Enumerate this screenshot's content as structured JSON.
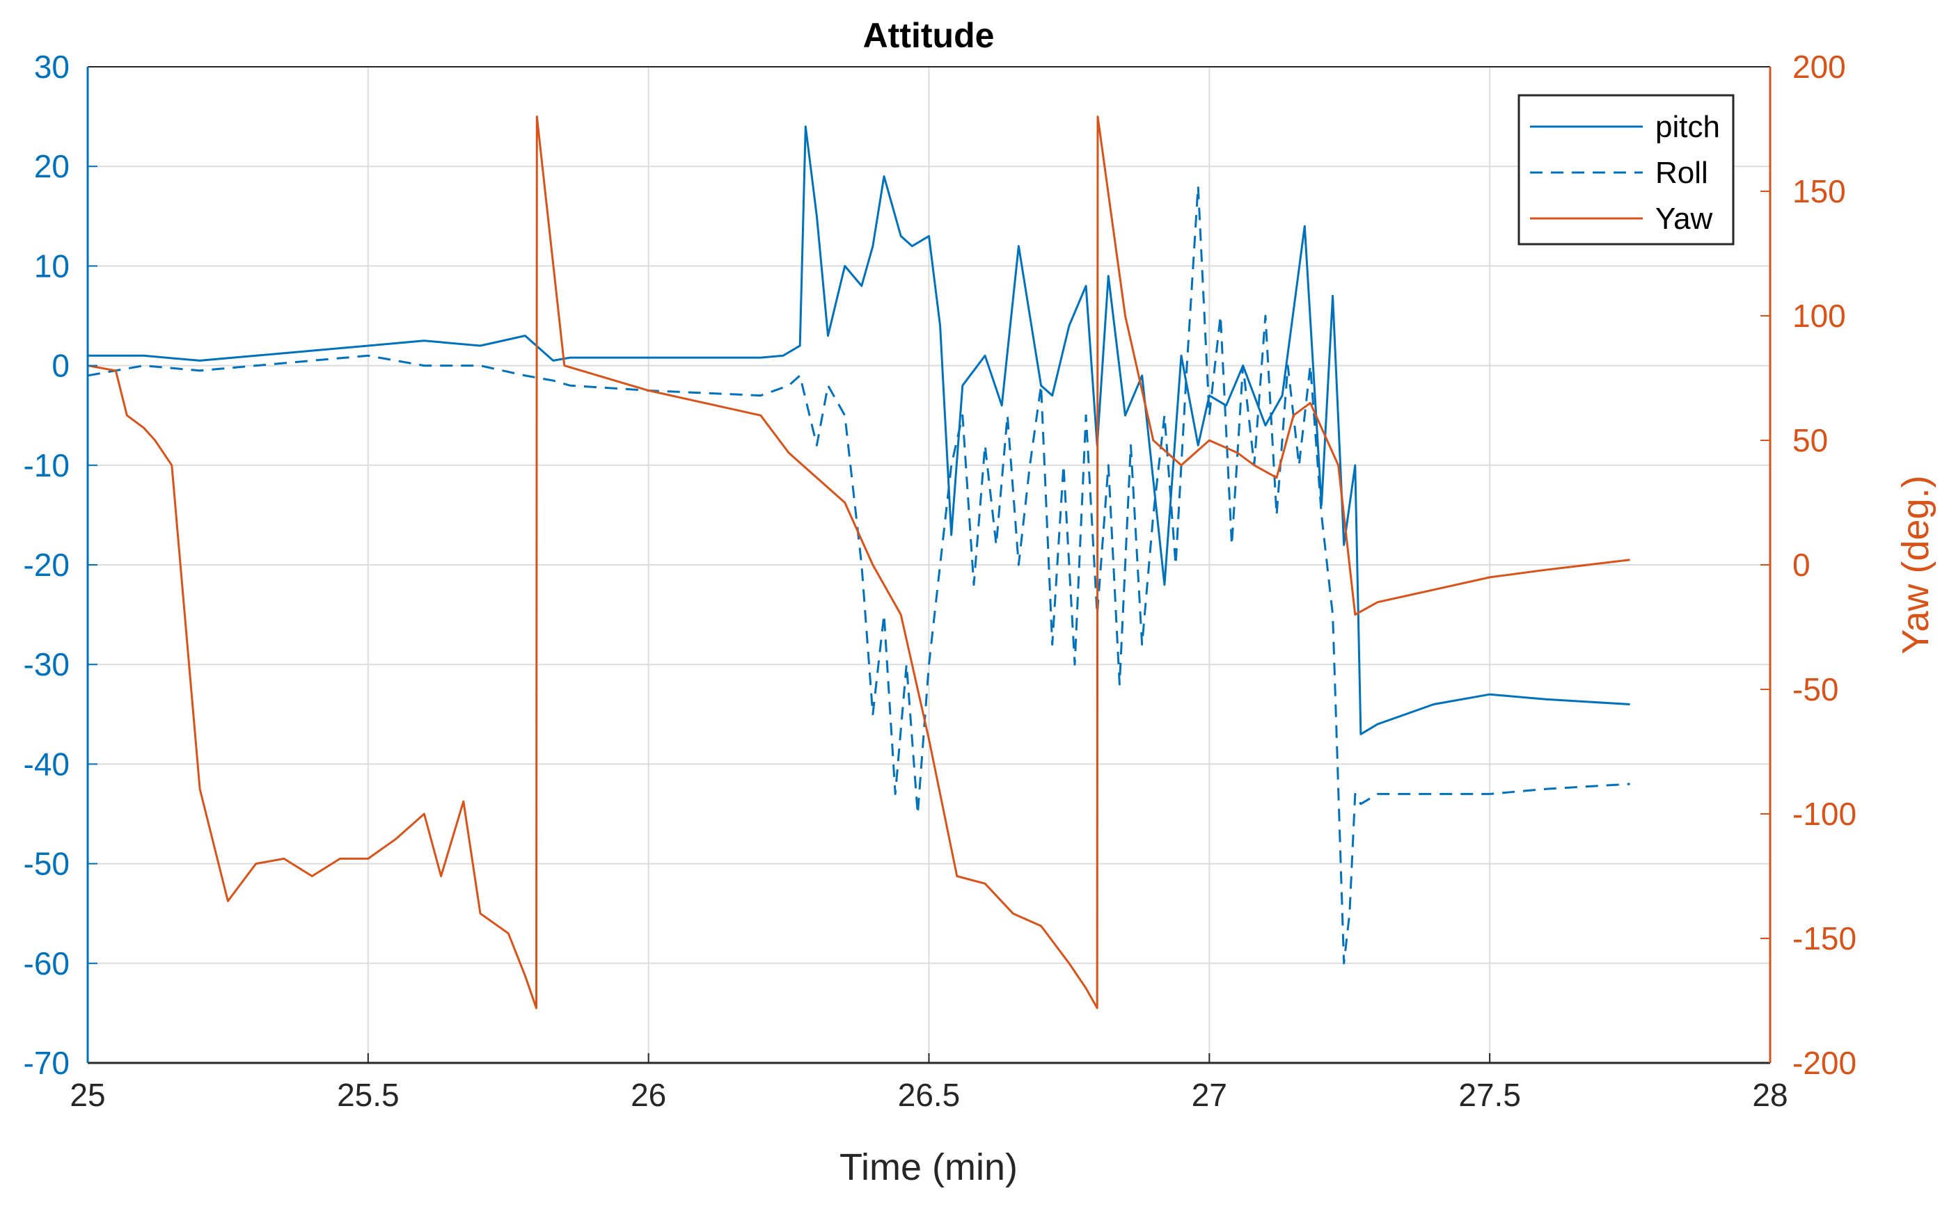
{
  "chart_data": {
    "type": "line",
    "title": "Attitude",
    "xlabel": "Time (min)",
    "ylabel_left": "",
    "ylabel_right": "Yaw (deg.)",
    "xlim": [
      25,
      28
    ],
    "ylim_left": [
      -70,
      30
    ],
    "ylim_right": [
      -200,
      200
    ],
    "xticks": [
      "25",
      "25.5",
      "26",
      "26.5",
      "27",
      "27.5",
      "28"
    ],
    "yticks_left": [
      "30",
      "20",
      "10",
      "0",
      "-10",
      "-20",
      "-30",
      "-40",
      "-50",
      "-60",
      "-70"
    ],
    "yticks_right": [
      "200",
      "150",
      "100",
      "50",
      "0",
      "-50",
      "-100",
      "-150",
      "-200"
    ],
    "grid": true,
    "legend_position": "top-right",
    "colors": {
      "left_axis": "#0072BD",
      "right_axis": "#D95319",
      "grid": "#dcdcdc",
      "axes": "#262626"
    },
    "series": [
      {
        "name": "pitch",
        "axis": "left",
        "style": "solid",
        "color": "#0072BD",
        "x": [
          25.0,
          25.1,
          25.2,
          25.3,
          25.4,
          25.5,
          25.6,
          25.7,
          25.78,
          25.83,
          25.86,
          26.0,
          26.2,
          26.24,
          26.27,
          26.28,
          26.3,
          26.32,
          26.35,
          26.38,
          26.4,
          26.42,
          26.45,
          26.47,
          26.5,
          26.52,
          26.54,
          26.56,
          26.6,
          26.63,
          26.66,
          26.7,
          26.72,
          26.75,
          26.78,
          26.8,
          26.82,
          26.85,
          26.88,
          26.92,
          26.95,
          26.98,
          27.0,
          27.03,
          27.06,
          27.1,
          27.13,
          27.17,
          27.2,
          27.22,
          27.24,
          27.26,
          27.27,
          27.3,
          27.4,
          27.5,
          27.6,
          27.75
        ],
        "values": [
          1,
          1,
          0.5,
          1,
          1.5,
          2,
          2.5,
          2,
          3,
          0.5,
          0.8,
          0.8,
          0.8,
          1,
          2,
          24,
          15,
          3,
          10,
          8,
          12,
          19,
          13,
          12,
          13,
          4,
          -17,
          -2,
          1,
          -4,
          12,
          -2,
          -3,
          4,
          8,
          -8,
          9,
          -5,
          -1,
          -22,
          1,
          -8,
          -3,
          -4,
          0,
          -6,
          -3,
          14,
          -14,
          7,
          -18,
          -10,
          -37,
          -36,
          -34,
          -33,
          -33.5,
          -34
        ]
      },
      {
        "name": "Roll",
        "axis": "left",
        "style": "dashed",
        "color": "#0072BD",
        "x": [
          25.0,
          25.1,
          25.2,
          25.3,
          25.4,
          25.5,
          25.6,
          25.7,
          25.78,
          25.83,
          25.86,
          26.0,
          26.2,
          26.25,
          26.27,
          26.3,
          26.32,
          26.35,
          26.38,
          26.4,
          26.42,
          26.44,
          26.46,
          26.48,
          26.5,
          26.52,
          26.54,
          26.56,
          26.58,
          26.6,
          26.62,
          26.64,
          26.66,
          26.68,
          26.7,
          26.72,
          26.74,
          26.76,
          26.78,
          26.8,
          26.82,
          26.84,
          26.86,
          26.88,
          26.9,
          26.92,
          26.94,
          26.96,
          26.98,
          27.0,
          27.02,
          27.04,
          27.06,
          27.08,
          27.1,
          27.12,
          27.14,
          27.16,
          27.18,
          27.2,
          27.22,
          27.24,
          27.25,
          27.26,
          27.27,
          27.3,
          27.4,
          27.5,
          27.6,
          27.75
        ],
        "values": [
          -1,
          0,
          -0.5,
          0,
          0.5,
          1,
          0,
          0,
          -1,
          -1.5,
          -2,
          -2.5,
          -3,
          -2,
          -1,
          -8,
          -2,
          -5,
          -20,
          -35,
          -25,
          -43,
          -30,
          -45,
          -30,
          -20,
          -10,
          -5,
          -22,
          -8,
          -18,
          -5,
          -20,
          -10,
          -2,
          -28,
          -10,
          -30,
          -5,
          -25,
          -10,
          -32,
          -8,
          -28,
          -15,
          -5,
          -20,
          0,
          18,
          -5,
          5,
          -18,
          0,
          -10,
          5,
          -15,
          0,
          -10,
          0,
          -15,
          -25,
          -60,
          -55,
          -43,
          -44,
          -43,
          -43,
          -43,
          -42.5,
          -42
        ]
      },
      {
        "name": "Yaw",
        "axis": "right",
        "style": "solid",
        "color": "#D95319",
        "x": [
          25.0,
          25.05,
          25.07,
          25.1,
          25.12,
          25.15,
          25.2,
          25.25,
          25.3,
          25.35,
          25.4,
          25.45,
          25.5,
          25.55,
          25.6,
          25.63,
          25.67,
          25.7,
          25.75,
          25.78,
          25.8,
          25.801,
          25.85,
          26.0,
          26.2,
          26.25,
          26.3,
          26.35,
          26.38,
          26.4,
          26.45,
          26.5,
          26.55,
          26.6,
          26.65,
          26.7,
          26.75,
          26.78,
          26.8,
          26.801,
          26.85,
          26.9,
          26.95,
          27.0,
          27.05,
          27.08,
          27.12,
          27.15,
          27.18,
          27.2,
          27.23,
          27.26,
          27.3,
          27.4,
          27.5,
          27.6,
          27.75
        ],
        "values": [
          80,
          78,
          60,
          55,
          50,
          40,
          -90,
          -135,
          -120,
          -118,
          -125,
          -118,
          -118,
          -110,
          -100,
          -125,
          -95,
          -140,
          -148,
          -165,
          -178,
          180,
          80,
          70,
          60,
          45,
          35,
          25,
          10,
          0,
          -20,
          -70,
          -125,
          -128,
          -140,
          -145,
          -160,
          -170,
          -178,
          180,
          100,
          50,
          40,
          50,
          45,
          40,
          35,
          60,
          65,
          55,
          40,
          -20,
          -15,
          -10,
          -5,
          -2,
          2
        ]
      }
    ]
  },
  "legend": {
    "items": [
      {
        "label": "pitch"
      },
      {
        "label": "Roll"
      },
      {
        "label": "Yaw"
      }
    ]
  }
}
